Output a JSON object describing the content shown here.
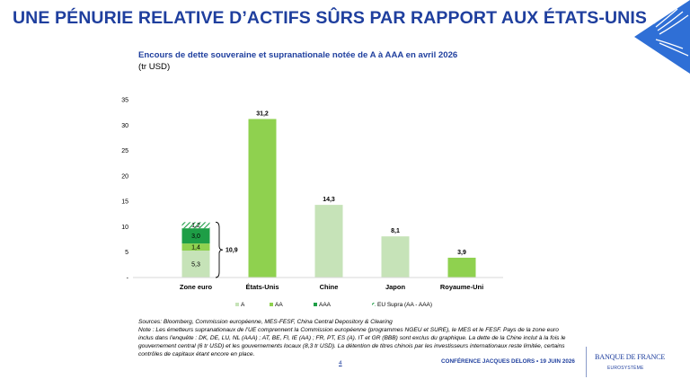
{
  "slide_title": "UNE PÉNURIE RELATIVE D’ACTIFS SÛRS PAR RAPPORT AUX ÉTATS-UNIS",
  "colors": {
    "brand_blue": "#1f3f9e",
    "A": "#c6e3b8",
    "AA": "#8fd14f",
    "AAA": "#1e9e46",
    "EU_Supra": "#1e9e46"
  },
  "chart_data": {
    "type": "bar",
    "stacked": true,
    "title": "Encours de dette souveraine et supranationale notée de A à AAA en avril 2026",
    "unit": "(tr USD)",
    "categories": [
      "Zone euro",
      "États-Unis",
      "Chine",
      "Japon",
      "Royaume-Uni"
    ],
    "series": [
      {
        "name": "A",
        "values": [
          5.3,
          null,
          14.3,
          8.1,
          null
        ],
        "labels": [
          "5,3",
          "",
          "14,3",
          "8,1",
          ""
        ]
      },
      {
        "name": "AA",
        "values": [
          1.4,
          31.2,
          null,
          null,
          3.9
        ],
        "labels": [
          "1,4",
          "31,2",
          "",
          "",
          "3,9"
        ]
      },
      {
        "name": "AAA",
        "values": [
          3.0,
          null,
          null,
          null,
          null
        ],
        "labels": [
          "3,0",
          "",
          "",
          "",
          ""
        ]
      },
      {
        "name": "EU Supra (AA - AAA)",
        "values": [
          1.2,
          null,
          null,
          null,
          null
        ],
        "labels": [
          "1,2",
          "",
          "",
          "",
          ""
        ],
        "pattern": "hatched"
      }
    ],
    "annotation": {
      "category": "Zone euro",
      "text": "10,9",
      "type": "brace-total"
    },
    "ylim": [
      0,
      35
    ],
    "yticks": [
      0,
      5,
      10,
      15,
      20,
      25,
      30,
      35
    ],
    "ytick_labels": [
      "-",
      "5",
      "10",
      "15",
      "20",
      "25",
      "30",
      "35"
    ],
    "xlabel": "",
    "ylabel": "",
    "grid": false,
    "legend_position": "bottom"
  },
  "notes": {
    "sources": "Sources: Bloomberg, Commission européenne, MES-FESF, China Central Depository & Clearing",
    "note": "Note : Les émetteurs supranationaux de l’UE comprennent la Commission européenne (programmes NGEU et SURE), le MES et le FESF. Pays de la zone euro inclus dans l’enquête : DK, DE, LU, NL (AAA) ; AT, BE, FI, IE (AA) ; FR, PT, ES (A). IT et GR (BBB) sont exclus du graphique. La dette de la Chine inclut à la fois le gouvernement central (6 tr USD) et les gouvernements locaux (8,3 tr USD). La détention de titres chinois par les investisseurs internationaux reste limitée, certains contrôles de capitaux étant encore en place."
  },
  "footer": {
    "page_number": "4",
    "conference": "CONFÉRENCE JACQUES DELORS • 19 JUIN 2026",
    "logo_name": "BANQUE DE FRANCE",
    "logo_sub": "EUROSYSTÈME"
  }
}
